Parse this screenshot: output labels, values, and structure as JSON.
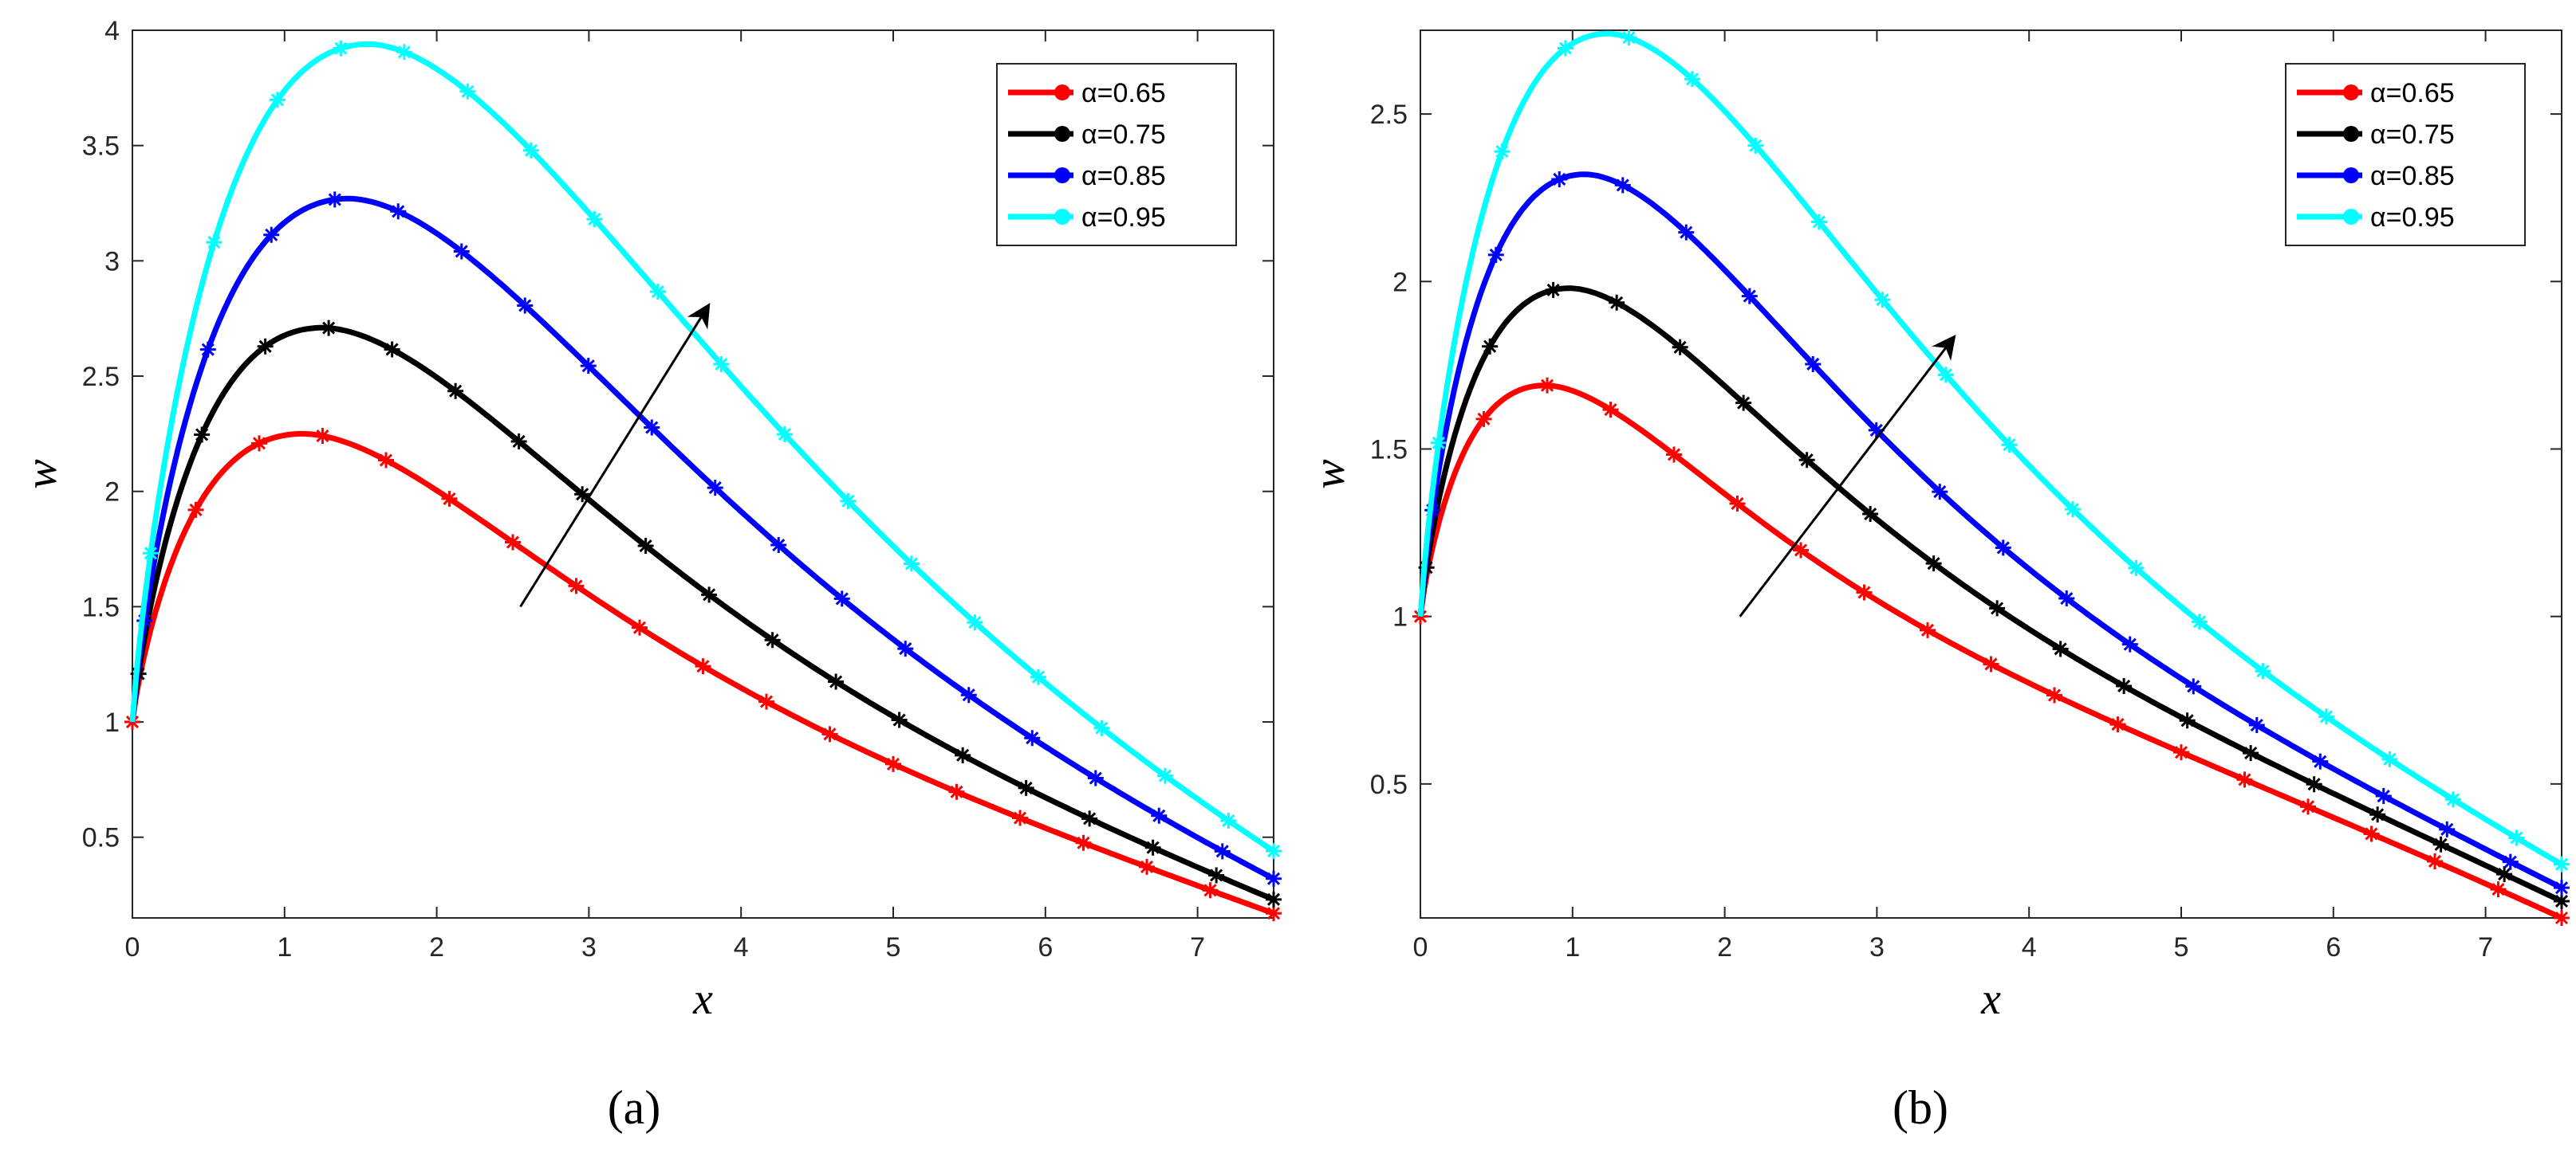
{
  "chart_data": [
    {
      "type": "line",
      "panel_label": "(a)",
      "xlabel": "x",
      "ylabel": "w",
      "xlim": [
        0,
        7.5
      ],
      "ylim": [
        0.15,
        4.0
      ],
      "xticks": [
        "0",
        "1",
        "2",
        "3",
        "4",
        "5",
        "6",
        "7"
      ],
      "yticks": [
        "0.5",
        "1",
        "1.5",
        "2",
        "2.5",
        "3",
        "3.5",
        "4"
      ],
      "grid": false,
      "legend_position": "top-right",
      "annotation": "arrow indicating increasing alpha",
      "series": [
        {
          "name": "α=0.65",
          "color": "#ff0000",
          "peak_x": 1.12,
          "peak_y": 2.25,
          "end_y": 0.17
        },
        {
          "name": "α=0.75",
          "color": "#000000",
          "peak_x": 1.25,
          "peak_y": 2.71,
          "end_y": 0.23
        },
        {
          "name": "α=0.85",
          "color": "#0000ff",
          "peak_x": 1.42,
          "peak_y": 3.27,
          "end_y": 0.32
        },
        {
          "name": "α=0.95",
          "color": "#00ffff",
          "peak_x": 1.55,
          "peak_y": 3.94,
          "end_y": 0.44
        }
      ],
      "start_y": 1.0,
      "arrow": {
        "from": [
          2.55,
          1.5
        ],
        "to": [
          3.78,
          2.8
        ]
      }
    },
    {
      "type": "line",
      "panel_label": "(b)",
      "xlabel": "x",
      "ylabel": "w",
      "xlim": [
        0,
        7.5
      ],
      "ylim": [
        0.1,
        2.75
      ],
      "xticks": [
        "0",
        "1",
        "2",
        "3",
        "4",
        "5",
        "6",
        "7"
      ],
      "yticks": [
        "0.5",
        "1",
        "1.5",
        "2",
        "2.5"
      ],
      "grid": false,
      "legend_position": "top-right",
      "annotation": "arrow indicating increasing alpha",
      "series": [
        {
          "name": "α=0.65",
          "color": "#ff0000",
          "peak_x": 0.82,
          "peak_y": 1.69,
          "end_y": 0.1
        },
        {
          "name": "α=0.75",
          "color": "#000000",
          "peak_x": 0.98,
          "peak_y": 1.98,
          "end_y": 0.15
        },
        {
          "name": "α=0.85",
          "color": "#0000ff",
          "peak_x": 1.08,
          "peak_y": 2.32,
          "end_y": 0.19
        },
        {
          "name": "α=0.95",
          "color": "#00ffff",
          "peak_x": 1.23,
          "peak_y": 2.74,
          "end_y": 0.26
        }
      ],
      "start_y": 1.0,
      "arrow": {
        "from": [
          2.1,
          1.0
        ],
        "to": [
          3.5,
          1.83
        ]
      }
    }
  ]
}
